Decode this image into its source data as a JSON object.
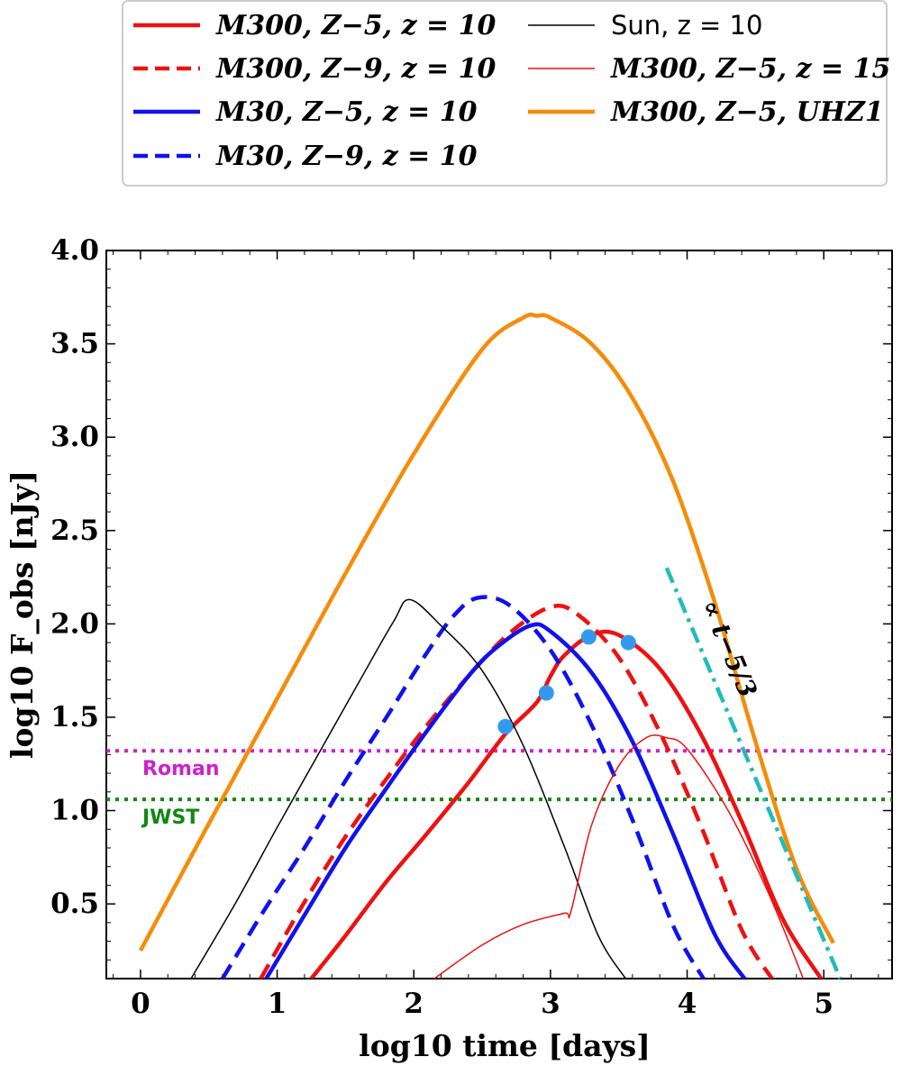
{
  "chart_data": {
    "type": "line",
    "xlabel": "log10 time [days]",
    "ylabel": "log10 F_obs [nJy]",
    "xlim": [
      -0.25,
      5.5
    ],
    "ylim": [
      0.1,
      4.0
    ],
    "xticks": [
      "0",
      "1",
      "2",
      "3",
      "4",
      "5"
    ],
    "yticks": [
      "0.5",
      "1.0",
      "1.5",
      "2.0",
      "2.5",
      "3.0",
      "3.5",
      "4.0"
    ],
    "legend_location": "top, above plot",
    "series": [
      {
        "name": "M300, Z−5, z = 10",
        "color": "#ee1111",
        "style": "solid",
        "width": "thick",
        "x": [
          1.25,
          1.5,
          1.8,
          2.1,
          2.4,
          2.67,
          2.9,
          3.0,
          3.1,
          3.3,
          3.5,
          3.8,
          4.1,
          4.4,
          4.7,
          4.98
        ],
        "y": [
          0.1,
          0.33,
          0.62,
          0.88,
          1.15,
          1.41,
          1.58,
          1.72,
          1.83,
          1.94,
          1.94,
          1.76,
          1.41,
          0.94,
          0.42,
          0.1
        ]
      },
      {
        "name": "M300, Z−9, z = 10",
        "color": "#ee1111",
        "style": "dashed",
        "width": "thick",
        "x": [
          0.88,
          1.2,
          1.5,
          1.8,
          2.1,
          2.4,
          2.7,
          3.0,
          3.2,
          3.5,
          3.8,
          4.1,
          4.4,
          4.62
        ],
        "y": [
          0.1,
          0.51,
          0.86,
          1.17,
          1.46,
          1.72,
          1.95,
          2.09,
          2.05,
          1.82,
          1.42,
          0.92,
          0.36,
          0.1
        ]
      },
      {
        "name": "M30, Z−5, z = 10",
        "color": "#1111ee",
        "style": "solid",
        "width": "thick",
        "x": [
          0.92,
          1.2,
          1.5,
          1.8,
          2.1,
          2.4,
          2.6,
          2.85,
          3.0,
          3.3,
          3.6,
          3.9,
          4.2,
          4.42
        ],
        "y": [
          0.1,
          0.44,
          0.8,
          1.12,
          1.43,
          1.72,
          1.87,
          1.99,
          1.96,
          1.74,
          1.37,
          0.87,
          0.34,
          0.1
        ]
      },
      {
        "name": "M30, Z−9, z = 10",
        "color": "#1111ee",
        "style": "dashed",
        "width": "thick",
        "x": [
          0.6,
          0.9,
          1.2,
          1.5,
          1.8,
          2.1,
          2.3,
          2.47,
          2.7,
          3.0,
          3.3,
          3.6,
          3.9,
          4.12
        ],
        "y": [
          0.1,
          0.46,
          0.8,
          1.16,
          1.5,
          1.85,
          2.05,
          2.14,
          2.1,
          1.86,
          1.46,
          0.95,
          0.38,
          0.1
        ]
      },
      {
        "name": "Sun, z = 10",
        "color": "#000000",
        "style": "solid",
        "width": "thin",
        "x": [
          0.37,
          0.7,
          1.0,
          1.3,
          1.6,
          1.85,
          1.97,
          2.2,
          2.5,
          2.8,
          3.1,
          3.35,
          3.55
        ],
        "y": [
          0.1,
          0.51,
          0.91,
          1.3,
          1.69,
          2.01,
          2.13,
          1.99,
          1.75,
          1.35,
          0.81,
          0.33,
          0.1
        ]
      },
      {
        "name": "M300, Z−5, z = 15",
        "color": "#ee1111",
        "style": "solid",
        "width": "thin",
        "x": [
          2.15,
          2.5,
          2.8,
          3.1,
          3.15,
          3.3,
          3.5,
          3.7,
          3.85,
          4.0,
          4.3,
          4.6,
          4.85
        ],
        "y": [
          0.1,
          0.28,
          0.39,
          0.45,
          0.46,
          0.92,
          1.24,
          1.39,
          1.39,
          1.33,
          1.0,
          0.55,
          0.1
        ]
      },
      {
        "name": "M300, Z−5, UHZ1",
        "color": "#f58c0a",
        "style": "solid",
        "width": "thick",
        "x": [
          0.0,
          0.5,
          1.0,
          1.5,
          2.0,
          2.5,
          2.8,
          2.9,
          3.0,
          3.3,
          3.6,
          3.9,
          4.2,
          4.5,
          4.8,
          5.07
        ],
        "y": [
          0.25,
          0.93,
          1.6,
          2.27,
          2.91,
          3.47,
          3.64,
          3.65,
          3.64,
          3.5,
          3.21,
          2.76,
          2.12,
          1.37,
          0.69,
          0.29
        ]
      }
    ],
    "markers": {
      "color": "#3399ee",
      "x": [
        2.67,
        2.97,
        3.28,
        3.57
      ],
      "y": [
        1.45,
        1.63,
        1.93,
        1.9
      ]
    },
    "power_law": {
      "label": "∝ t−5/3",
      "color": "#22bbbb",
      "style": "dash-dot",
      "x": [
        3.85,
        5.12
      ],
      "y": [
        2.3,
        0.1
      ]
    },
    "hlines": [
      {
        "name": "Roman",
        "y": 1.32,
        "color": "#cc22cc"
      },
      {
        "name": "JWST",
        "y": 1.06,
        "color": "#118811"
      }
    ]
  }
}
